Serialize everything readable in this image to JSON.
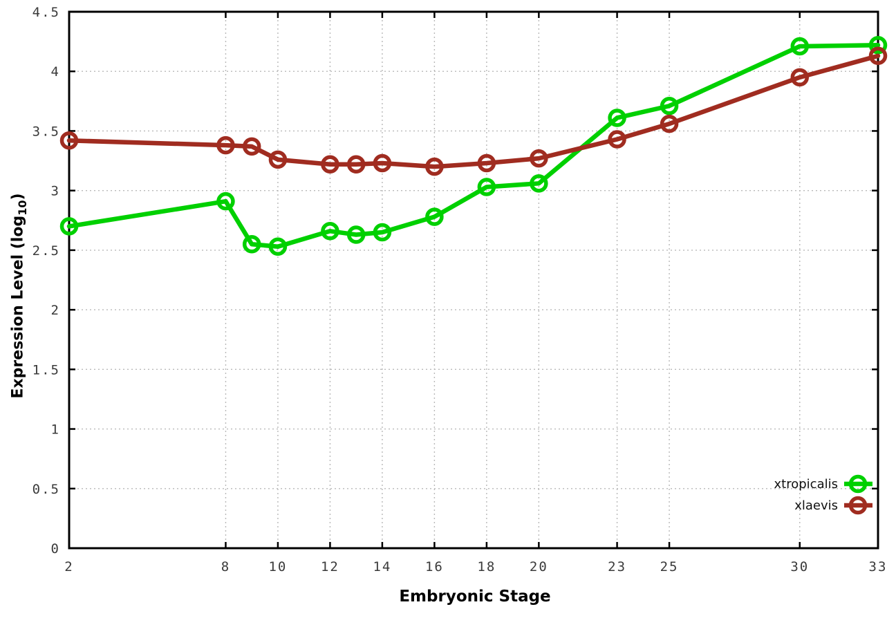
{
  "chart_data": {
    "type": "line",
    "title": "",
    "xlabel": "Embryonic Stage",
    "ylabel": {
      "prefix": "Expression Level (log",
      "sub": "10",
      "suffix": ")"
    },
    "x": [
      2,
      8,
      9,
      10,
      12,
      13,
      14,
      16,
      18,
      20,
      23,
      25,
      30,
      33
    ],
    "xtick_labels": [
      "2",
      "8",
      "10",
      "12",
      "14",
      "16",
      "18",
      "20",
      "23",
      "25",
      "30",
      "33"
    ],
    "xticks": [
      2,
      8,
      10,
      12,
      14,
      16,
      18,
      20,
      23,
      25,
      30,
      33
    ],
    "yticks": [
      0,
      0.5,
      1,
      1.5,
      2,
      2.5,
      3,
      3.5,
      4,
      4.5
    ],
    "ytick_labels": [
      "0",
      "0.5",
      "1",
      "1.5",
      "2",
      "2.5",
      "3",
      "3.5",
      "4",
      "4.5"
    ],
    "xlim": [
      2,
      33
    ],
    "ylim": [
      0,
      4.5
    ],
    "grid": true,
    "grid_color": "#b8b8b8",
    "border_color": "#000000",
    "legend_position": "bottom-right",
    "series": [
      {
        "name": "xtropicalis",
        "color": "#00d000",
        "values": [
          2.7,
          2.91,
          2.55,
          2.53,
          2.66,
          2.63,
          2.65,
          2.78,
          3.03,
          3.06,
          3.61,
          3.71,
          4.21,
          4.22
        ]
      },
      {
        "name": "xlaevis",
        "color": "#a02c20",
        "values": [
          3.42,
          3.38,
          3.37,
          3.26,
          3.22,
          3.22,
          3.23,
          3.2,
          3.23,
          3.27,
          3.43,
          3.56,
          3.95,
          4.13
        ]
      }
    ]
  }
}
